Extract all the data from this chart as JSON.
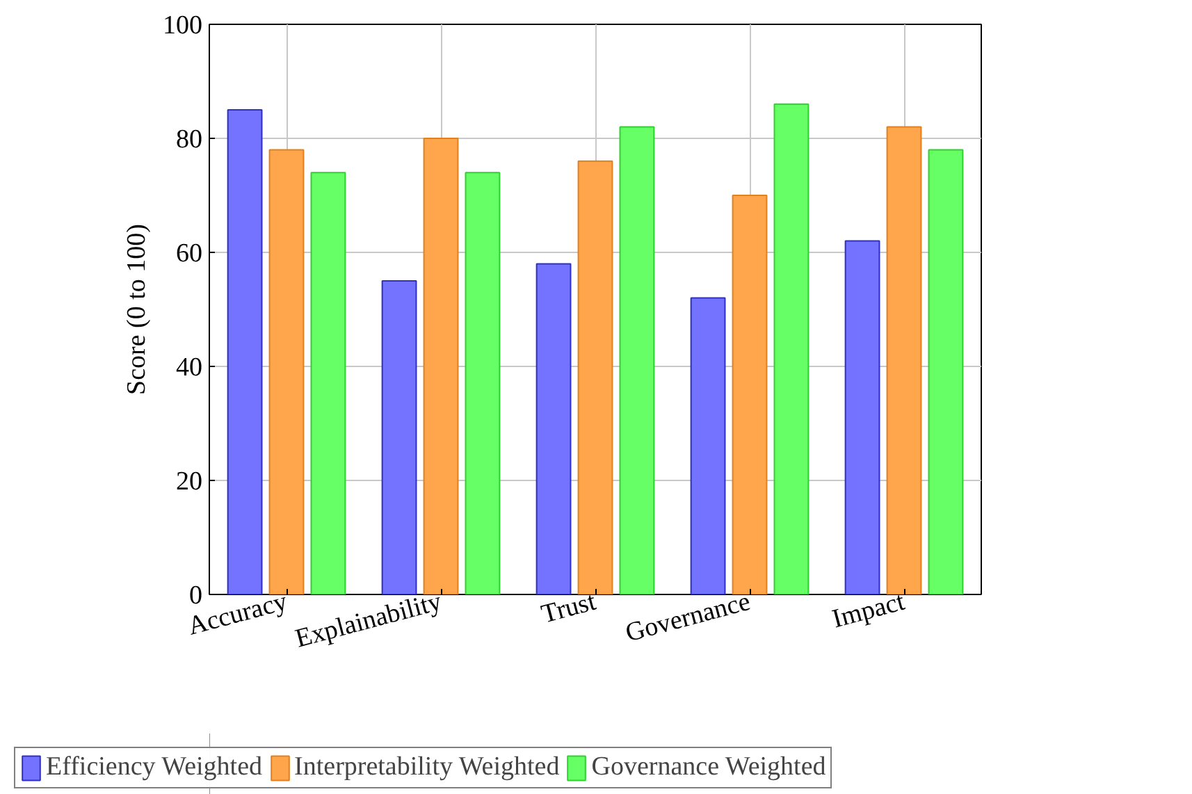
{
  "chart_data": {
    "type": "bar",
    "ylabel": "Score (0 to 100)",
    "categories": [
      "Accuracy",
      "Explainability",
      "Trust",
      "Governance",
      "Impact"
    ],
    "series": [
      {
        "name": "Efficiency Weighted",
        "color": "#7373ff",
        "values": [
          85,
          55,
          58,
          52,
          62
        ]
      },
      {
        "name": "Interpretability Weighted",
        "color": "#ffa64d",
        "values": [
          78,
          80,
          76,
          70,
          82
        ]
      },
      {
        "name": "Governance Weighted",
        "color": "#66ff66",
        "values": [
          74,
          74,
          82,
          86,
          78
        ]
      }
    ],
    "ylim": [
      0,
      100
    ],
    "yticks": [
      0,
      20,
      40,
      60,
      80,
      100
    ],
    "grid": true,
    "legend": "bottom"
  }
}
